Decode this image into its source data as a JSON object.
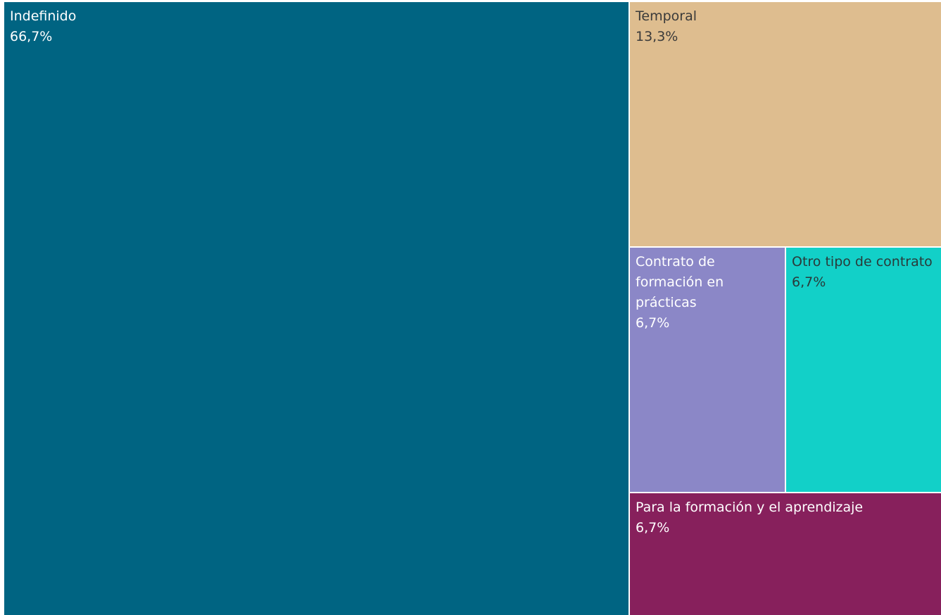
{
  "chart_data": {
    "type": "treemap",
    "unit": "%",
    "items": [
      {
        "label": "Indefinido",
        "display_value": "66,7%",
        "value": 66.7,
        "color": "#006482",
        "text_color": "#ffffff"
      },
      {
        "label": "Temporal",
        "display_value": "13,3%",
        "value": 13.3,
        "color": "#debd8f",
        "text_color": "#3a3a3a"
      },
      {
        "label": "Contrato de formación en prácticas",
        "display_value": "6,7%",
        "value": 6.7,
        "color": "#8b87c7",
        "text_color": "#ffffff"
      },
      {
        "label": "Otro tipo de contrato",
        "display_value": "6,7%",
        "value": 6.7,
        "color": "#12d0c8",
        "text_color": "#2a3a3a"
      },
      {
        "label": "Para la formación y el aprendizaje",
        "display_value": "6,7%",
        "value": 6.7,
        "color": "#87205c",
        "text_color": "#ffffff"
      }
    ]
  }
}
